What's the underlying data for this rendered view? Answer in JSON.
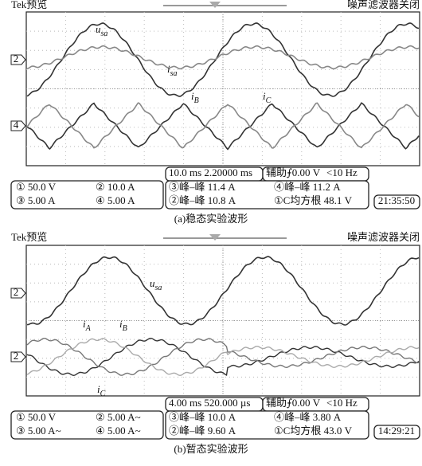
{
  "panels": [
    {
      "header_left": "Tek预览",
      "header_right": "噪声滤波器关闭",
      "markers": [
        "2",
        "4"
      ],
      "labels": [
        {
          "main": "u",
          "sub": "sa"
        },
        {
          "main": "i",
          "sub": "sa"
        },
        {
          "main": "i",
          "sub": "B"
        },
        {
          "main": "i",
          "sub": "C"
        }
      ],
      "timebase": "10.0 ms 2.20000 ms",
      "trigger": "辅助⨍0.00 V",
      "freq": "<10 Hz",
      "channels": [
        "① 50.0 V",
        "② 10.0 A",
        "③ 5.00 A",
        "④ 5.00 A"
      ],
      "measurements": [
        "③峰–峰 11.4 A",
        "④峰–峰 11.2 A",
        "②峰–峰 10.8 A",
        "①C均方根 48.1 V"
      ],
      "time": "21:35:50",
      "caption": "(a)稳态实验波形"
    },
    {
      "header_left": "Tek预览",
      "header_right": "噪声滤波器关闭",
      "markers": [
        "2",
        "2"
      ],
      "labels": [
        {
          "main": "u",
          "sub": "sa"
        },
        {
          "main": "i",
          "sub": "A"
        },
        {
          "main": "i",
          "sub": "B"
        },
        {
          "main": "i",
          "sub": "C"
        }
      ],
      "timebase": "4.00 ms 520.000 µs",
      "trigger": "辅助⨍0.00 V",
      "freq": "<10 Hz",
      "channels": [
        "① 50.0 V",
        "② 5.00 A~",
        "③ 5.00 A~",
        "④ 5.00 A~"
      ],
      "measurements": [
        "③峰–峰 10.0 A",
        "④峰–峰 3.80 A",
        "②峰–峰 9.60 A",
        "①C均方根 43.0 V"
      ],
      "time": "14:29:21",
      "caption": "(b)暂态实验波形"
    }
  ]
}
